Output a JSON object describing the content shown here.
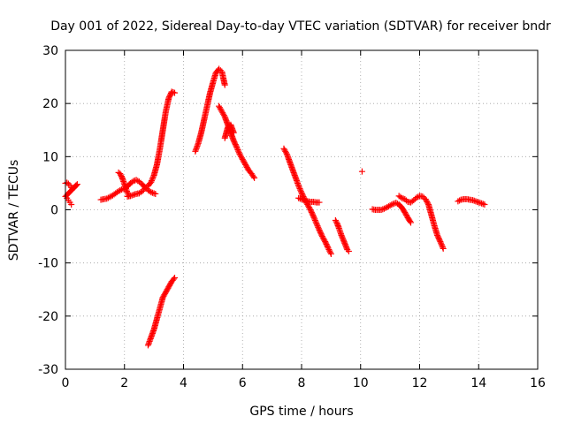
{
  "chart_data": {
    "type": "scatter",
    "title": "Day 001 of 2022, Sidereal Day-to-day VTEC variation (SDTVAR) for receiver bndr",
    "xlabel": "GPS time / hours",
    "ylabel": "SDTVAR / TECUs",
    "xlim": [
      0,
      16
    ],
    "ylim": [
      -30,
      30
    ],
    "xticks": [
      0,
      2,
      4,
      6,
      8,
      10,
      12,
      14,
      16
    ],
    "yticks": [
      -30,
      -20,
      -10,
      0,
      10,
      20,
      30
    ],
    "grid": true,
    "legend": "none",
    "marker": "plus",
    "color": "#ff0000",
    "series": [
      {
        "x": [
          0.0,
          0.05,
          0.1,
          0.15,
          0.2,
          0.25,
          0.3,
          0.35,
          0.4,
          0.0,
          0.05,
          0.1,
          0.15,
          0.2
        ],
        "y": [
          5.0,
          5.1,
          4.9,
          4.6,
          4.2,
          4.0,
          4.2,
          4.5,
          4.8,
          2.5,
          2.2,
          1.8,
          1.4,
          1.0
        ]
      },
      {
        "x": [
          1.2,
          1.3,
          1.4,
          1.5,
          1.6,
          1.7,
          1.8,
          1.9,
          2.0,
          2.1,
          2.2,
          2.3,
          2.4,
          2.5,
          2.6,
          2.7,
          2.8,
          2.9,
          3.0,
          3.05
        ],
        "y": [
          1.9,
          2.0,
          2.1,
          2.4,
          2.7,
          3.1,
          3.5,
          3.8,
          4.0,
          4.4,
          5.0,
          5.4,
          5.6,
          5.3,
          4.8,
          4.2,
          3.7,
          3.3,
          3.1,
          3.0
        ]
      },
      {
        "x": [
          1.8,
          1.85,
          1.9,
          1.95,
          2.0,
          2.05,
          2.1,
          2.15
        ],
        "y": [
          7.0,
          6.8,
          6.3,
          5.6,
          4.8,
          4.0,
          3.2,
          2.6
        ]
      },
      {
        "x": [
          2.1,
          2.2,
          2.3,
          2.4,
          2.5,
          2.6,
          2.7,
          2.8,
          2.9,
          3.0,
          3.1,
          3.2,
          3.3,
          3.4,
          3.5,
          3.6,
          3.7
        ],
        "y": [
          2.5,
          2.6,
          2.8,
          3.0,
          3.1,
          3.5,
          4.0,
          4.5,
          5.2,
          6.5,
          8.5,
          11.5,
          15.0,
          18.5,
          21.0,
          22.2,
          22.0
        ]
      },
      {
        "x": [
          2.8,
          2.9,
          3.0,
          3.1,
          3.2,
          3.3,
          3.4,
          3.5,
          3.6,
          3.7
        ],
        "y": [
          -25.5,
          -24.0,
          -22.5,
          -20.5,
          -18.5,
          -16.5,
          -15.5,
          -14.5,
          -13.5,
          -12.8
        ]
      },
      {
        "x": [
          4.4,
          4.5,
          4.6,
          4.7,
          4.8,
          4.9,
          5.0,
          5.1,
          5.2,
          5.3,
          5.4
        ],
        "y": [
          11.0,
          12.5,
          14.5,
          17.0,
          19.5,
          22.0,
          24.0,
          25.8,
          26.5,
          26.0,
          23.5
        ]
      },
      {
        "x": [
          5.2,
          5.3,
          5.4,
          5.5,
          5.6,
          5.7,
          5.8,
          5.9,
          6.0,
          6.1,
          6.2,
          6.3,
          6.4
        ],
        "y": [
          19.5,
          18.5,
          17.5,
          16.0,
          14.5,
          13.0,
          11.8,
          10.5,
          9.5,
          8.5,
          7.5,
          6.8,
          6.0
        ]
      },
      {
        "x": [
          5.4,
          5.5,
          5.6,
          5.7
        ],
        "y": [
          13.5,
          15.5,
          16.0,
          14.5
        ]
      },
      {
        "x": [
          7.4,
          7.5,
          7.6,
          7.7,
          7.8,
          7.9,
          8.0,
          8.1,
          8.2,
          8.3,
          8.4,
          8.5,
          8.6,
          8.7,
          8.8,
          8.9,
          9.0
        ],
        "y": [
          11.5,
          10.5,
          9.0,
          7.5,
          6.0,
          4.5,
          3.2,
          2.0,
          1.0,
          0.0,
          -1.2,
          -2.5,
          -3.8,
          -5.0,
          -6.0,
          -7.2,
          -8.3
        ]
      },
      {
        "x": [
          7.9,
          8.0,
          8.1,
          8.2,
          8.3,
          8.4,
          8.5,
          8.6
        ],
        "y": [
          2.2,
          2.0,
          1.8,
          1.6,
          1.5,
          1.5,
          1.4,
          1.4
        ]
      },
      {
        "x": [
          9.15,
          9.2,
          9.25,
          9.3,
          9.35,
          9.55,
          9.6,
          10.05
        ],
        "y": [
          -2.0,
          -2.5,
          -3.2,
          -4.0,
          -4.8,
          -7.5,
          -7.8,
          7.2
        ]
      },
      {
        "x": [
          10.4,
          10.5,
          10.6,
          10.7,
          10.8,
          10.9,
          11.0,
          11.1,
          11.2,
          11.3,
          11.4,
          11.5,
          11.6,
          11.7
        ],
        "y": [
          0.1,
          0.0,
          0.0,
          0.0,
          0.2,
          0.5,
          0.8,
          1.1,
          1.3,
          1.0,
          0.4,
          -0.5,
          -1.5,
          -2.4
        ]
      },
      {
        "x": [
          11.3,
          11.4,
          11.5,
          11.6,
          11.7,
          11.8,
          11.9,
          12.0,
          12.1,
          12.2,
          12.3,
          12.4,
          12.5,
          12.6,
          12.7,
          12.8
        ],
        "y": [
          2.6,
          2.2,
          2.0,
          1.5,
          1.4,
          1.8,
          2.3,
          2.6,
          2.5,
          2.0,
          1.0,
          -1.0,
          -3.0,
          -4.8,
          -6.0,
          -7.3
        ]
      },
      {
        "x": [
          13.3,
          13.4,
          13.5,
          13.6,
          13.7,
          13.8,
          13.9,
          14.0,
          14.1,
          14.2
        ],
        "y": [
          1.6,
          1.9,
          2.0,
          2.0,
          1.9,
          1.8,
          1.6,
          1.4,
          1.2,
          1.0
        ]
      }
    ]
  }
}
